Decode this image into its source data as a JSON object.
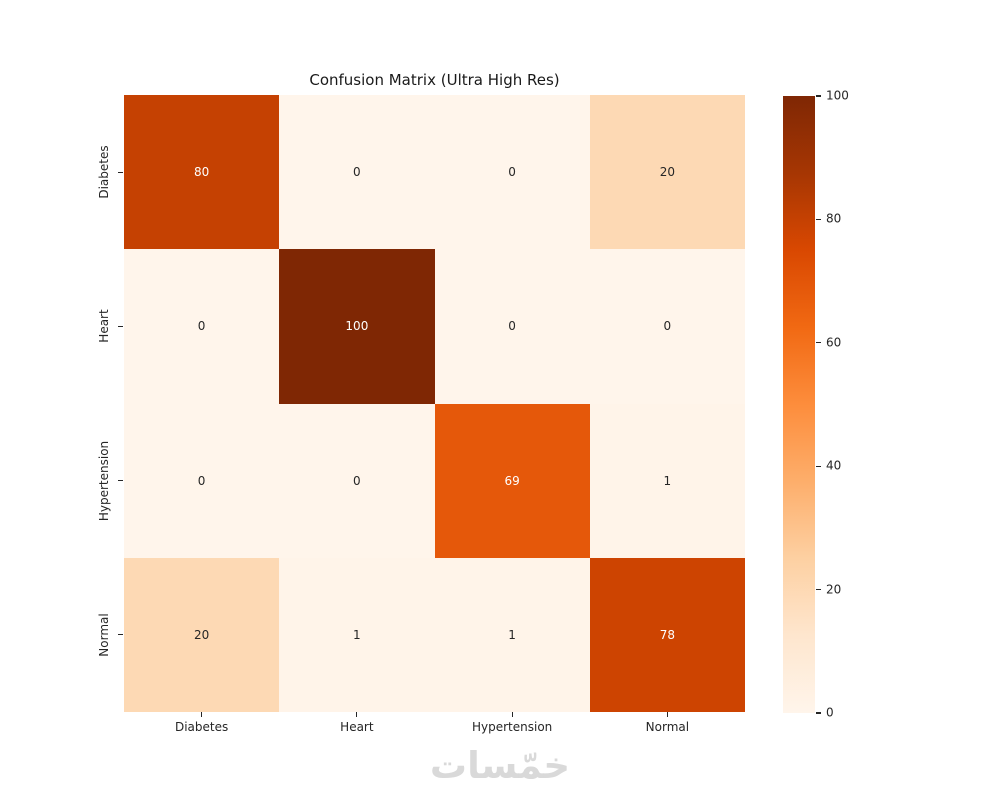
{
  "watermark": {
    "text": "خمّسات",
    "color": "#d9d9d9"
  },
  "chart_data": {
    "type": "heatmap",
    "title": "Confusion Matrix (Ultra High Res)",
    "x_categories": [
      "Diabetes",
      "Heart",
      "Hypertension",
      "Normal"
    ],
    "y_categories": [
      "Diabetes",
      "Heart",
      "Hypertension",
      "Normal"
    ],
    "matrix": [
      [
        80,
        0,
        0,
        20
      ],
      [
        0,
        100,
        0,
        0
      ],
      [
        0,
        0,
        69,
        1
      ],
      [
        20,
        1,
        1,
        78
      ]
    ],
    "vmin": 0,
    "vmax": 100,
    "colormap_name": "Oranges",
    "colormap_stops": [
      "#fff5eb",
      "#fee6ce",
      "#fdd0a2",
      "#fdae6b",
      "#fd8d3c",
      "#f16913",
      "#d94801",
      "#a63603",
      "#7f2704"
    ],
    "colorbar_ticks": [
      0,
      20,
      40,
      60,
      80,
      100
    ],
    "annotation_color_light": "#ffffff",
    "annotation_color_dark": "#262626",
    "axis_text_color": "#262626",
    "legend_position": "right-colorbar",
    "grid": false
  }
}
